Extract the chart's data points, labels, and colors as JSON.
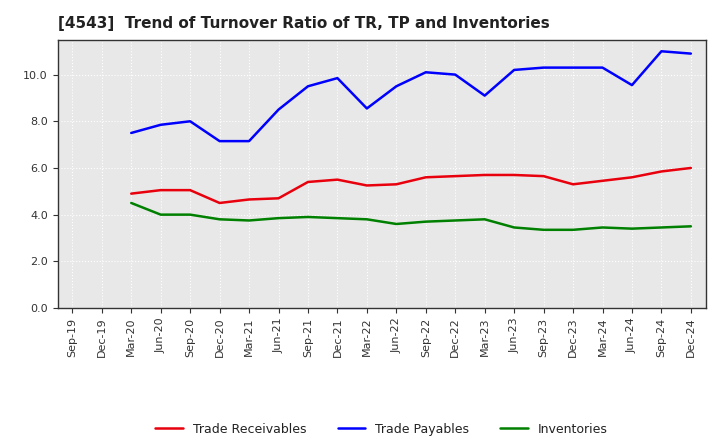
{
  "title": "[4543]  Trend of Turnover Ratio of TR, TP and Inventories",
  "x_labels": [
    "Sep-19",
    "Dec-19",
    "Mar-20",
    "Jun-20",
    "Sep-20",
    "Dec-20",
    "Mar-21",
    "Jun-21",
    "Sep-21",
    "Dec-21",
    "Mar-22",
    "Jun-22",
    "Sep-22",
    "Dec-22",
    "Mar-23",
    "Jun-23",
    "Sep-23",
    "Dec-23",
    "Mar-24",
    "Jun-24",
    "Sep-24",
    "Dec-24"
  ],
  "trade_receivables": [
    null,
    null,
    4.9,
    5.05,
    5.05,
    4.5,
    4.65,
    4.7,
    5.4,
    5.5,
    5.25,
    5.3,
    5.6,
    5.65,
    5.7,
    5.7,
    5.65,
    5.3,
    5.45,
    5.6,
    5.85,
    6.0
  ],
  "trade_payables": [
    null,
    null,
    7.5,
    7.85,
    8.0,
    7.15,
    7.15,
    8.5,
    9.5,
    9.85,
    8.55,
    9.5,
    10.1,
    10.0,
    9.1,
    10.2,
    10.3,
    10.3,
    10.3,
    9.55,
    11.0,
    10.9
  ],
  "inventories": [
    null,
    null,
    4.5,
    4.0,
    4.0,
    3.8,
    3.75,
    3.85,
    3.9,
    3.85,
    3.8,
    3.6,
    3.7,
    3.75,
    3.8,
    3.45,
    3.35,
    3.35,
    3.45,
    3.4,
    3.45,
    3.5
  ],
  "colors": {
    "trade_receivables": "#e8000d",
    "trade_payables": "#0000ff",
    "inventories": "#008000"
  },
  "ylim": [
    0.0,
    11.5
  ],
  "yticks": [
    0.0,
    2.0,
    4.0,
    6.0,
    8.0,
    10.0
  ],
  "background_color": "#ffffff",
  "plot_bg_color": "#e8e8e8",
  "grid_color": "#ffffff",
  "grid_linestyle": ":",
  "line_width": 1.8,
  "title_fontsize": 11,
  "tick_fontsize": 8,
  "legend_fontsize": 9
}
